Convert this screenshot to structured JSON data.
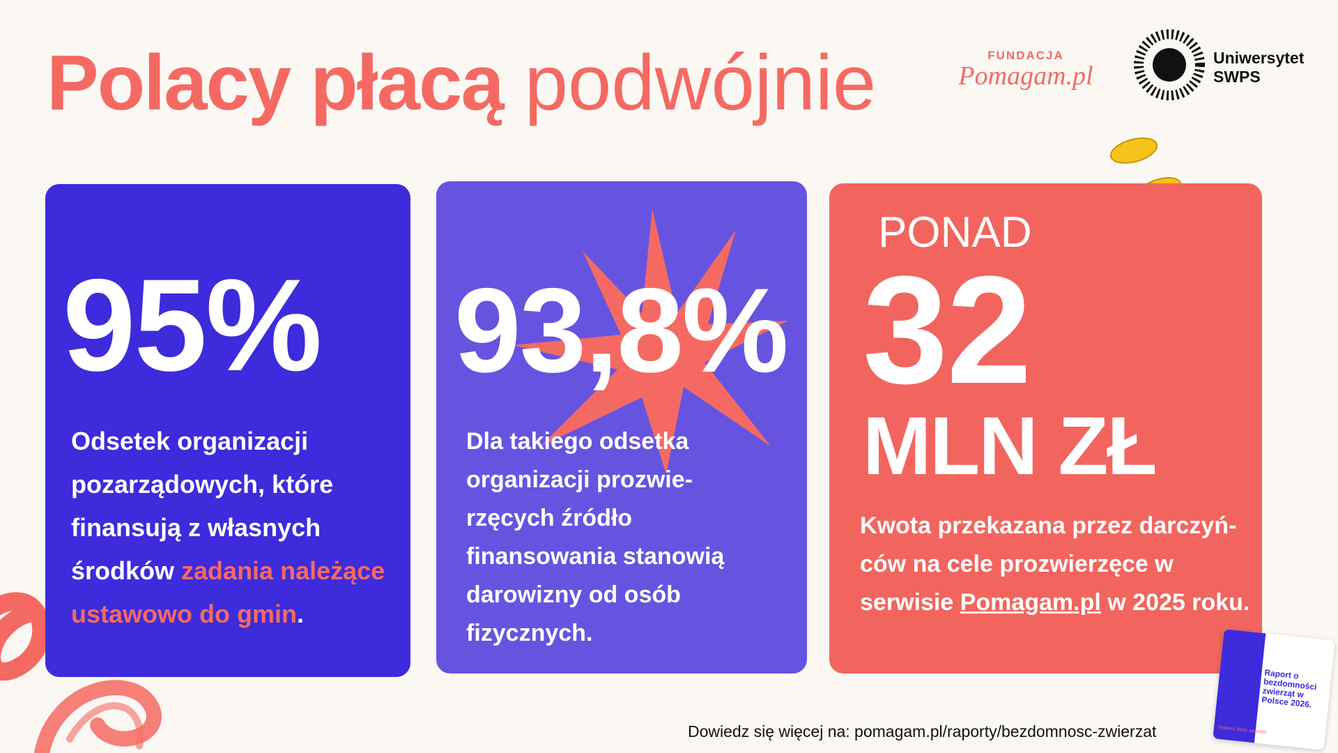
{
  "header": {
    "title_bold": "Polacy płacą",
    "title_light": "podwójnie"
  },
  "logos": {
    "fundacja": "FUNDACJA",
    "pomagam": "Pomagam.pl",
    "university_line1": "Uniwersytet",
    "university_line2": "SWPS"
  },
  "cards": [
    {
      "stat": "95%",
      "text": "Odsetek organizacji pozarządowych, które finansują z własnych środków ",
      "highlight": "zadania nale­żące ustawowo do gmin",
      "end": "."
    },
    {
      "stat": "93,8%",
      "text": "Dla takiego odsetka organizacji prozwie­rzęcych źródło finansowania stanowią darowizny od osób fizycznych."
    },
    {
      "prefix": "PONAD",
      "stat": "32",
      "unit": "MLN ZŁ",
      "text": "Kwota przekazana przez darczyń­ców na cele prozwierzęce w serwisie ",
      "link": "Pomagam.pl",
      "end": " w 2025 roku."
    }
  ],
  "report_thumbnail": {
    "title": "Raport o bezdomności zwierząt w Polsce 2026.",
    "subtitle": "System, który zawodzi."
  },
  "footer": "Dowiedz się więcej na: pomagam.pl/raporty/bezdomnosc-zwierzat"
}
